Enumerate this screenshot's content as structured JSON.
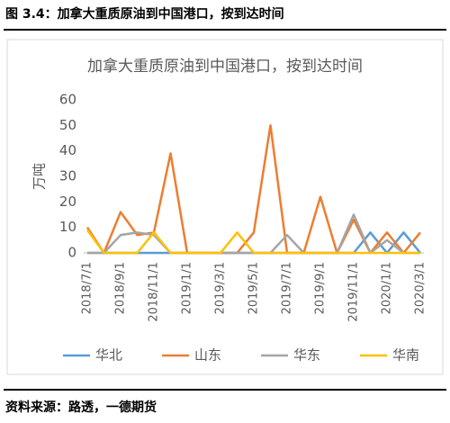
{
  "header": {
    "title": "图 3.4：加拿大重质原油到中国港口，按到达时间"
  },
  "footer": {
    "source": "资料来源：路透，一德期货"
  },
  "chart_data": {
    "type": "line",
    "title": "加拿大重质原油到中国港口，按到达时间",
    "y_label": "万吨",
    "categories": [
      "2018/7/1",
      null,
      "2018/9/1",
      null,
      "2018/11/1",
      null,
      "2019/1/1",
      null,
      "2019/3/1",
      null,
      "2019/5/1",
      null,
      "2019/7/1",
      null,
      "2019/9/1",
      null,
      "2019/11/1",
      null,
      "2020/1/1",
      null,
      "2020/3/1"
    ],
    "series": [
      {
        "name": "华北",
        "color": "#5b9bd5",
        "values": [
          0,
          0,
          0,
          0,
          0,
          0,
          0,
          0,
          0,
          0,
          0,
          0,
          0,
          0,
          0,
          0,
          0,
          8,
          0,
          8,
          0
        ]
      },
      {
        "name": "山东",
        "color": "#ed7d31",
        "values": [
          10,
          0,
          16,
          7,
          8,
          39,
          0,
          0,
          0,
          0,
          8,
          50,
          0,
          0,
          22,
          0,
          13,
          0,
          8,
          0,
          8
        ]
      },
      {
        "name": "华东",
        "color": "#a5a5a5",
        "values": [
          0,
          0,
          7,
          8,
          7,
          0,
          0,
          0,
          0,
          0,
          0,
          0,
          7,
          0,
          0,
          0,
          15,
          0,
          5,
          0,
          0
        ]
      },
      {
        "name": "华南",
        "color": "#ffc000",
        "values": [
          9,
          0,
          0,
          0,
          8,
          0,
          0,
          0,
          0,
          8,
          0,
          0,
          0,
          0,
          0,
          0,
          0,
          0,
          0,
          0,
          0
        ]
      }
    ],
    "ylim": [
      0,
      60
    ],
    "yticks": [
      0,
      10,
      20,
      30,
      40,
      50,
      60
    ],
    "grid": false,
    "legend": "bottom"
  }
}
